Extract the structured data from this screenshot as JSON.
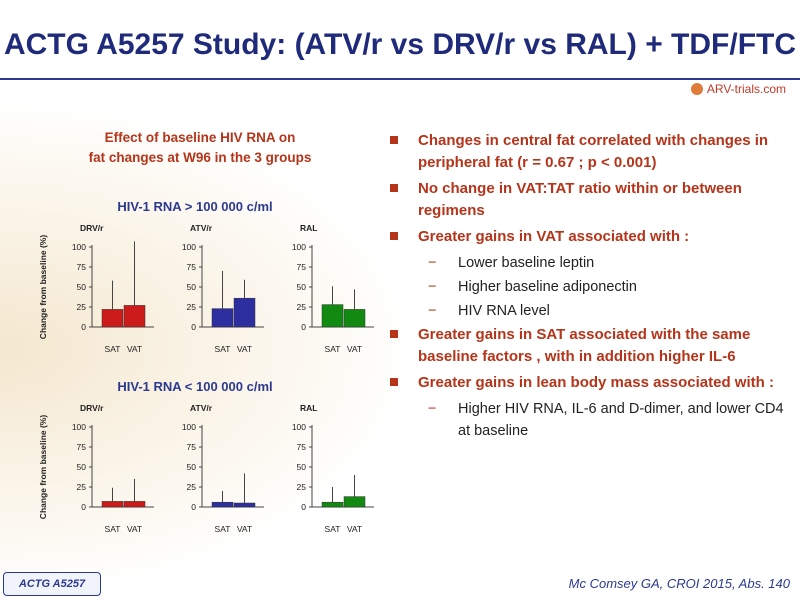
{
  "header": {
    "title": "ACTG A5257 Study: (ATV/r vs DRV/r vs RAL) + TDF/FTC",
    "logo_text": "ARV-trials.com"
  },
  "chart_title_line1": "Effect of baseline HIV RNA on",
  "chart_title_line2": "fat changes at W96 in the 3 groups",
  "colors": {
    "DRV/r": "#cc1b1b",
    "ATV/r": "#2d2ea0",
    "RAL": "#128a12",
    "title": "#1f2a7a",
    "accent": "#b5341a"
  },
  "chart_data": [
    {
      "type": "bar",
      "subtitle": "HIV-1 RNA > 100 000 c/ml",
      "ylabel": "Change from baseline (%)",
      "ylim": [
        0,
        100
      ],
      "yticks": [
        0,
        25,
        50,
        75,
        100
      ],
      "categories": [
        "SAT",
        "VAT"
      ],
      "panels": [
        {
          "name": "DRV/r",
          "values": [
            22,
            27
          ],
          "error_high": [
            58,
            107
          ]
        },
        {
          "name": "ATV/r",
          "values": [
            23,
            36
          ],
          "error_high": [
            70,
            59
          ]
        },
        {
          "name": "RAL",
          "values": [
            28,
            22
          ],
          "error_high": [
            51,
            47
          ]
        }
      ]
    },
    {
      "type": "bar",
      "subtitle": "HIV-1 RNA < 100 000 c/ml",
      "ylabel": "Change from baseline (%)",
      "ylim": [
        0,
        100
      ],
      "yticks": [
        0,
        25,
        50,
        75,
        100
      ],
      "categories": [
        "SAT",
        "VAT"
      ],
      "panels": [
        {
          "name": "DRV/r",
          "values": [
            7,
            7
          ],
          "error_high": [
            24,
            35
          ]
        },
        {
          "name": "ATV/r",
          "values": [
            6,
            5
          ],
          "error_high": [
            20,
            42
          ]
        },
        {
          "name": "RAL",
          "values": [
            6,
            13
          ],
          "error_high": [
            25,
            40
          ]
        }
      ]
    }
  ],
  "bullets": [
    {
      "level": 1,
      "text": "Changes in central fat correlated with changes in peripheral fat (r = 0.67 ; p < 0.001)"
    },
    {
      "level": 1,
      "text": "No change in VAT:TAT ratio within or between regimens"
    },
    {
      "level": 1,
      "text": "Greater gains in VAT associated with :"
    },
    {
      "level": 2,
      "text": "Lower baseline leptin"
    },
    {
      "level": 2,
      "text": "Higher baseline adiponectin"
    },
    {
      "level": 2,
      "text": "HIV RNA level"
    },
    {
      "level": 1,
      "text": "Greater gains in SAT associated with the same baseline factors , with in addition higher IL-6"
    },
    {
      "level": 1,
      "text": "Greater gains in lean body mass associated with :"
    },
    {
      "level": 2,
      "text": "Higher HIV RNA, IL-6 and D-dimer, and lower CD4 at baseline"
    }
  ],
  "footer": {
    "tag": "ACTG A5257",
    "reference": "Mc Comsey GA, CROI 2015, Abs. 140"
  },
  "bullet_dash": "−"
}
